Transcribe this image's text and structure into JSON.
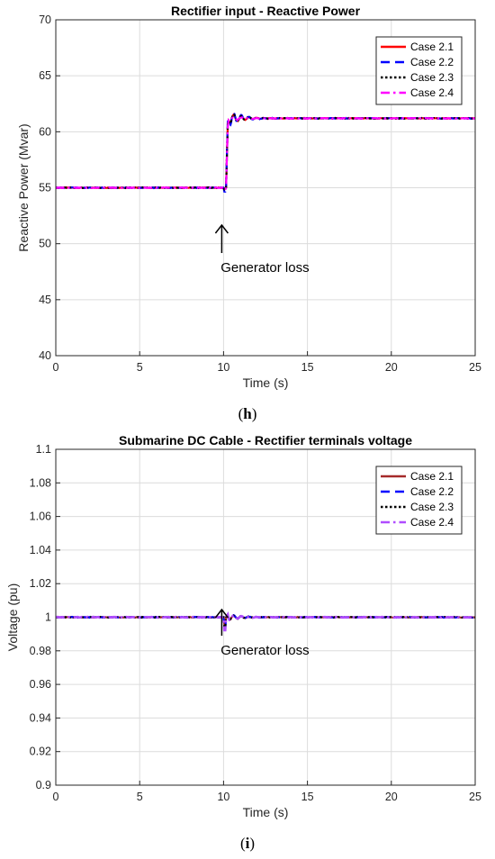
{
  "chart_data": [
    {
      "type": "line",
      "title": "Rectifier input - Reactive Power",
      "xlabel": "Time (s)",
      "ylabel": "Reactive Power (Mvar)",
      "xlim": [
        0,
        25
      ],
      "ylim": [
        40,
        70
      ],
      "xticks": [
        "0",
        "5",
        "10",
        "15",
        "20",
        "25"
      ],
      "yticks": [
        "40",
        "45",
        "50",
        "55",
        "60",
        "65",
        "70"
      ],
      "grid": true,
      "legend_position": "top-right",
      "annotation": "Generator loss",
      "annotation_x": 10,
      "event_time": 10,
      "pre_event_value": 55.0,
      "post_event_value": 61.2,
      "caption_letter": "h",
      "series": [
        {
          "name": "Case 2.1",
          "color": "#ff0000",
          "dash": "solid",
          "dip": 54.9,
          "peak": 61.8
        },
        {
          "name": "Case 2.2",
          "color": "#0000ff",
          "dash": "dash",
          "dip": 54.6,
          "peak": 62.2
        },
        {
          "name": "Case 2.3",
          "color": "#000000",
          "dash": "dot",
          "dip": 54.8,
          "peak": 61.9
        },
        {
          "name": "Case 2.4",
          "color": "#ff00ff",
          "dash": "dashdot",
          "dip": 54.8,
          "peak": 61.5
        }
      ]
    },
    {
      "type": "line",
      "title": "Submarine DC Cable - Rectifier terminals voltage",
      "xlabel": "Time (s)",
      "ylabel": "Voltage (pu)",
      "xlim": [
        0,
        25
      ],
      "ylim": [
        0.9,
        1.1
      ],
      "xticks": [
        "0",
        "5",
        "10",
        "15",
        "20",
        "25"
      ],
      "yticks": [
        "0.9",
        "0.92",
        "0.94",
        "0.96",
        "0.98",
        "1",
        "1.02",
        "1.04",
        "1.06",
        "1.08",
        "1.1"
      ],
      "grid": true,
      "legend_position": "top-right",
      "annotation": "Generator loss",
      "annotation_x": 10,
      "event_time": 10,
      "pre_event_value": 1.0,
      "post_event_value": 1.0,
      "caption_letter": "i",
      "series": [
        {
          "name": "Case 2.1",
          "color": "#a52a2a",
          "dash": "solid",
          "dip": 0.995,
          "peak": 1.002
        },
        {
          "name": "Case 2.2",
          "color": "#0000ff",
          "dash": "dash",
          "dip": 0.992,
          "peak": 1.002
        },
        {
          "name": "Case 2.3",
          "color": "#000000",
          "dash": "dot",
          "dip": 0.993,
          "peak": 1.002
        },
        {
          "name": "Case 2.4",
          "color": "#b04cff",
          "dash": "dashdot",
          "dip": 0.991,
          "peak": 1.002
        }
      ]
    }
  ]
}
